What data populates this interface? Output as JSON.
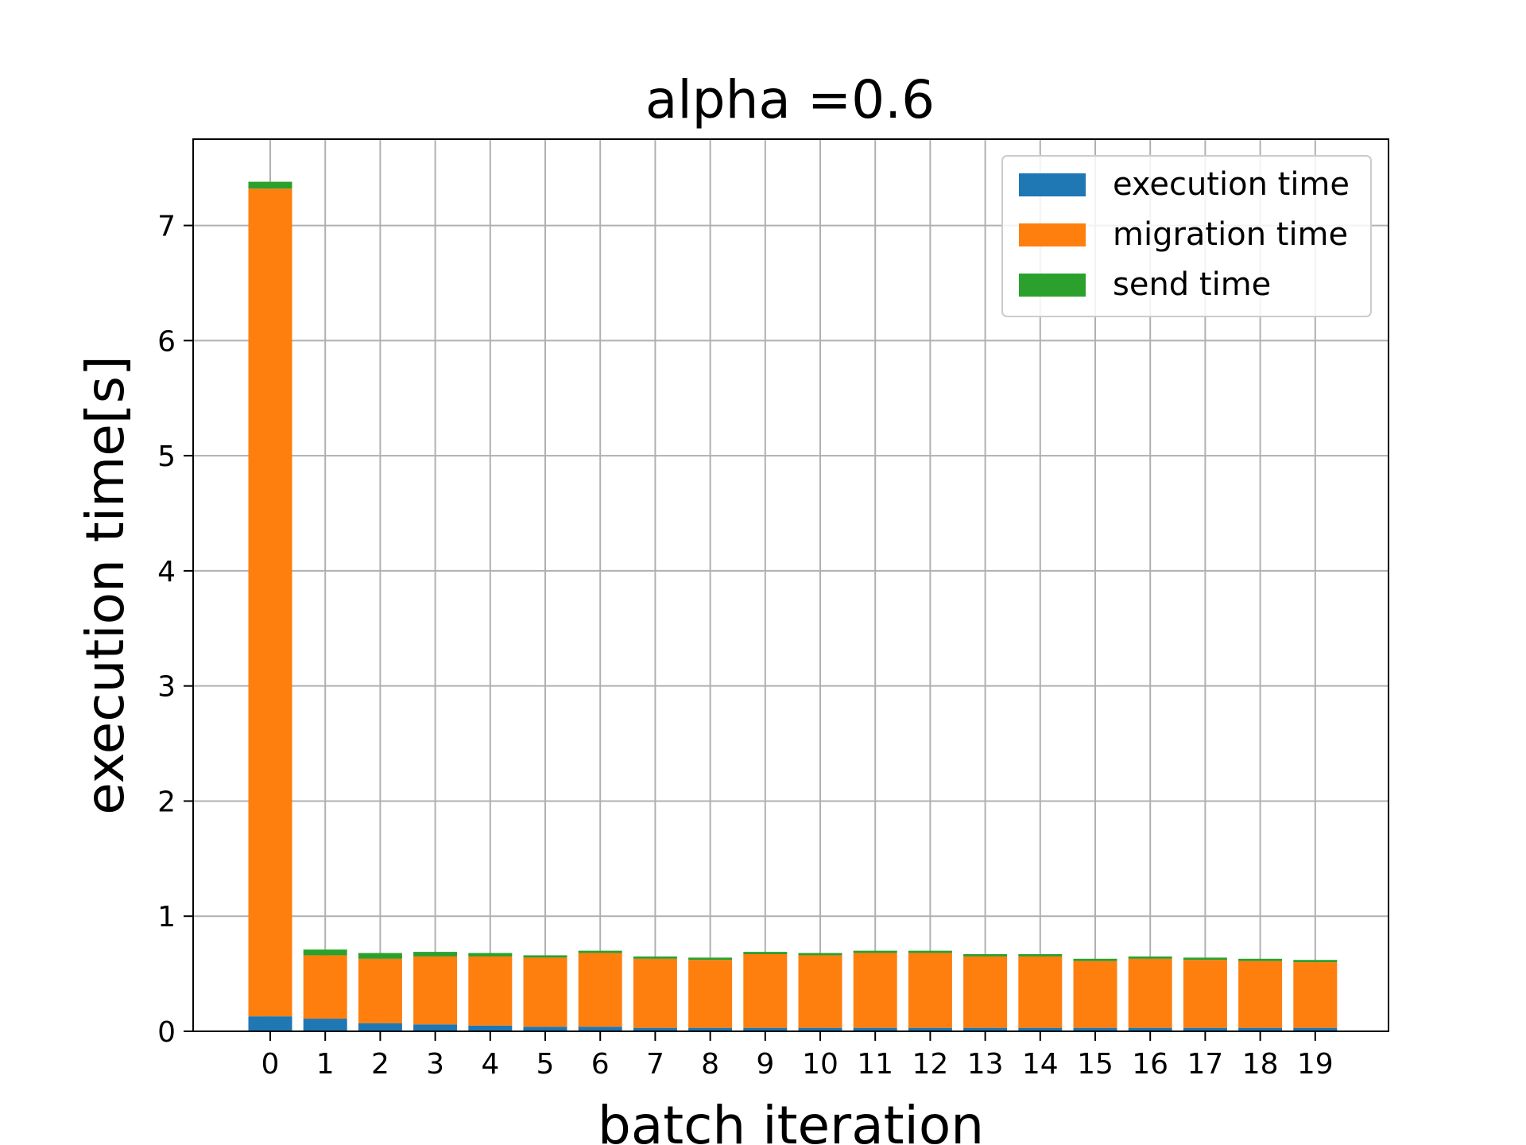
{
  "chart_data": {
    "type": "bar",
    "stacked": true,
    "title": "alpha =0.6",
    "xlabel": "batch iteration",
    "ylabel": "execution time[s]",
    "categories": [
      "0",
      "1",
      "2",
      "3",
      "4",
      "5",
      "6",
      "7",
      "8",
      "9",
      "10",
      "11",
      "12",
      "13",
      "14",
      "15",
      "16",
      "17",
      "18",
      "19"
    ],
    "ylim": [
      0,
      7.75
    ],
    "yticks": [
      "0",
      "1",
      "2",
      "3",
      "4",
      "5",
      "6",
      "7"
    ],
    "grid": true,
    "legend_position": "top-right",
    "series": [
      {
        "name": "execution time",
        "color": "#1f77b4",
        "values": [
          0.13,
          0.11,
          0.07,
          0.06,
          0.05,
          0.04,
          0.04,
          0.03,
          0.03,
          0.03,
          0.03,
          0.03,
          0.03,
          0.03,
          0.03,
          0.03,
          0.03,
          0.03,
          0.03,
          0.03
        ]
      },
      {
        "name": "migration time",
        "color": "#ff7f0e",
        "values": [
          7.19,
          0.55,
          0.56,
          0.59,
          0.6,
          0.6,
          0.64,
          0.6,
          0.59,
          0.64,
          0.63,
          0.65,
          0.65,
          0.62,
          0.62,
          0.58,
          0.6,
          0.59,
          0.58,
          0.57
        ]
      },
      {
        "name": "send time",
        "color": "#2ca02c",
        "values": [
          0.06,
          0.05,
          0.05,
          0.04,
          0.03,
          0.02,
          0.02,
          0.02,
          0.02,
          0.02,
          0.02,
          0.02,
          0.02,
          0.02,
          0.02,
          0.02,
          0.02,
          0.02,
          0.02,
          0.02
        ]
      }
    ]
  }
}
